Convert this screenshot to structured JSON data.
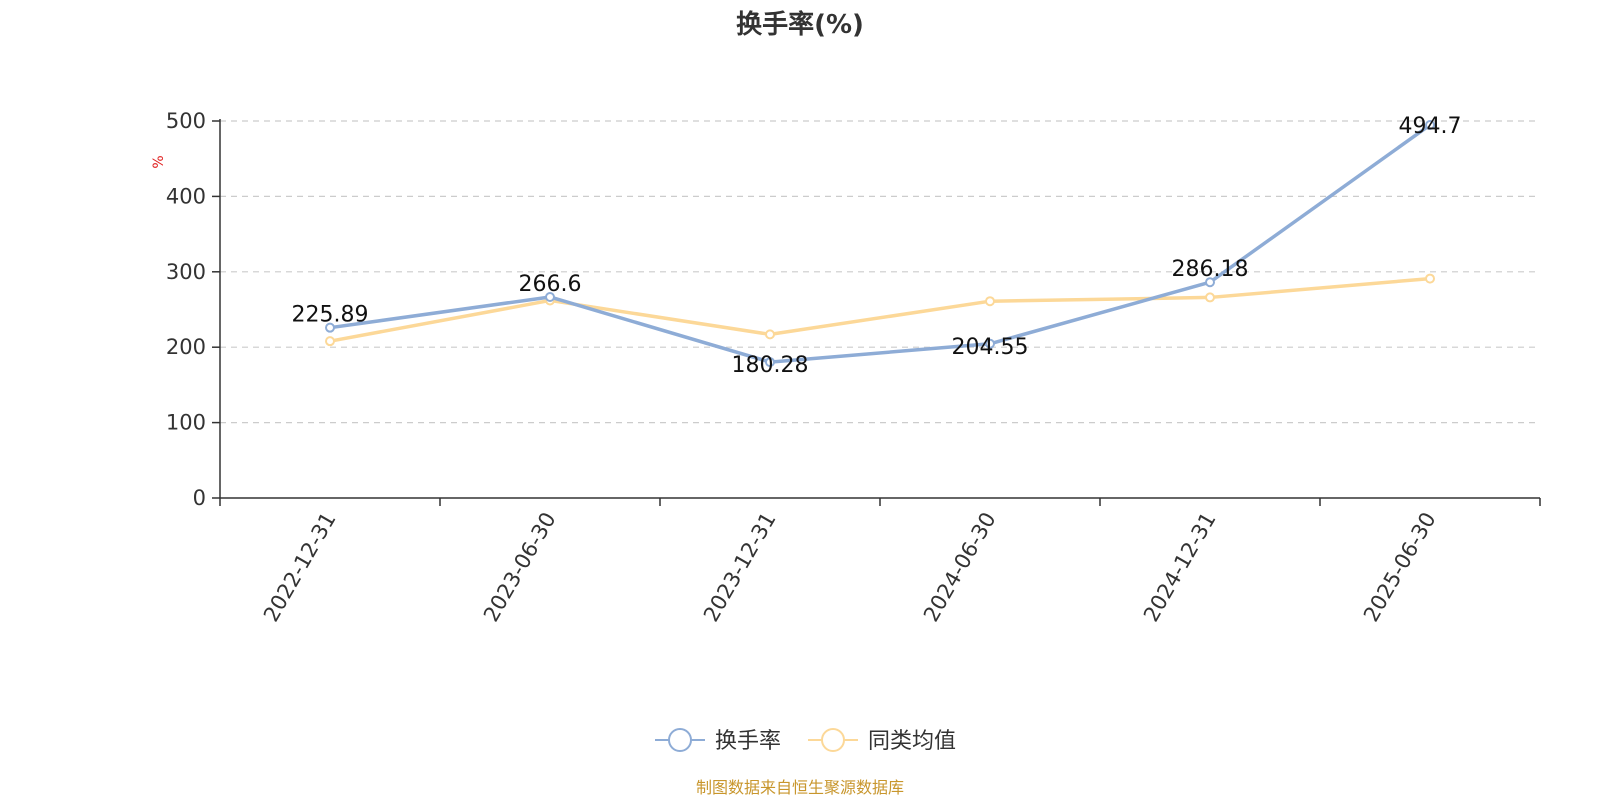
{
  "chart_data": {
    "type": "line",
    "title": "换手率(%)",
    "ylabel": "%",
    "ylim": [
      0,
      500
    ],
    "yticks": [
      0,
      100,
      200,
      300,
      400,
      500
    ],
    "categories": [
      "2022-12-31",
      "2023-06-30",
      "2023-12-31",
      "2024-06-30",
      "2024-12-31",
      "2025-06-30"
    ],
    "grid": true,
    "legend_position": "bottom",
    "series": [
      {
        "name": "换手率",
        "color": "#8eacd6",
        "values": [
          225.89,
          266.6,
          180.28,
          204.55,
          286.18,
          494.7
        ],
        "labels": [
          "225.89",
          "266.6",
          "180.28",
          "204.55",
          "286.18",
          "494.7"
        ]
      },
      {
        "name": "同类均值",
        "color": "#fcd898",
        "values": [
          208,
          262,
          217,
          261,
          266,
          291
        ]
      }
    ]
  },
  "source": "制图数据来自恒生聚源数据库"
}
